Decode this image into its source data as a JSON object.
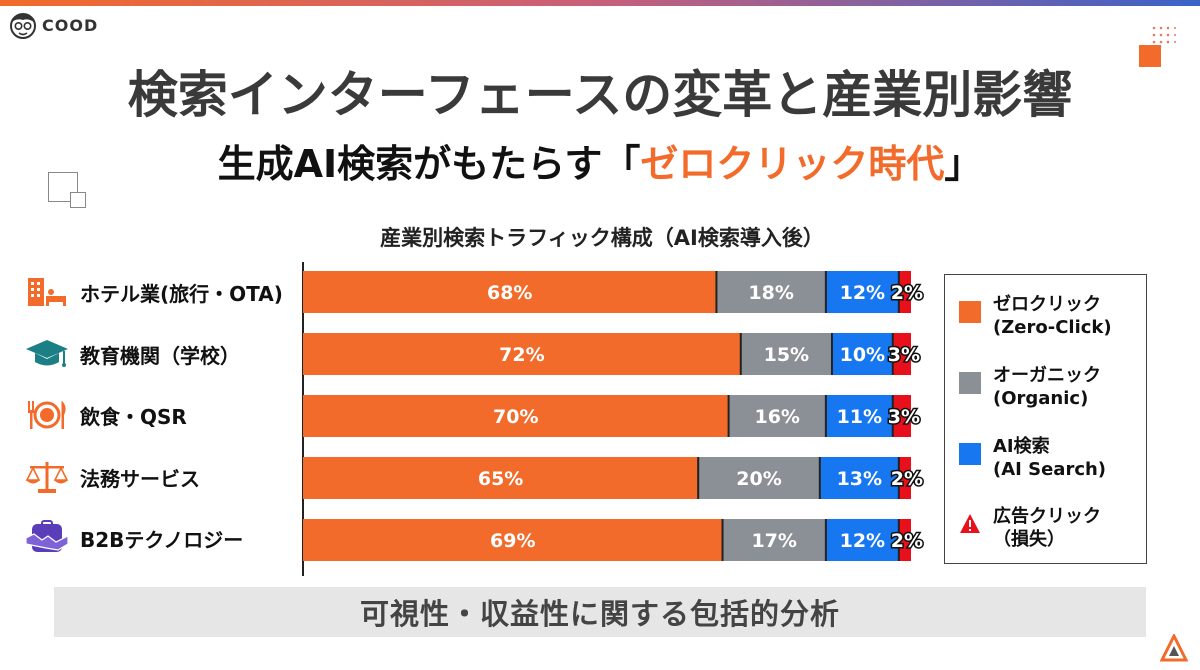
{
  "brand": {
    "logo_text": "COOD"
  },
  "header": {
    "title": "検索インターフェースの変革と産業別影響",
    "subtitle_prefix": "生成AI検索がもたらす「",
    "subtitle_highlight": "ゼロクリック時代",
    "subtitle_suffix": "」"
  },
  "colors": {
    "accent": "#f26b2a",
    "zero_click": "#f26b2a",
    "organic": "#8b8f96",
    "ai_search": "#1677f0",
    "ad_click": "#e8101a"
  },
  "icons": [
    "hotel-icon",
    "graduation-cap-icon",
    "dining-icon",
    "scales-icon",
    "handshake-icon"
  ],
  "chart_data": {
    "type": "bar",
    "orientation": "horizontal",
    "stacked": true,
    "title": "産業別検索トラフィック構成（AI検索導入後）",
    "categories": [
      "ホテル業(旅行・OTA)",
      "教育機関（学校）",
      "飲食・QSR",
      "法務サービス",
      "B2Bテクノロジー"
    ],
    "series": [
      {
        "name": "ゼロクリック\n(Zero-Click)",
        "color": "#f26b2a",
        "values": [
          68,
          72,
          70,
          65,
          69
        ]
      },
      {
        "name": "オーガニック\n(Organic)",
        "color": "#8b8f96",
        "values": [
          18,
          15,
          16,
          20,
          17
        ]
      },
      {
        "name": "AI検索\n(AI Search)",
        "color": "#1677f0",
        "values": [
          12,
          10,
          11,
          13,
          12
        ]
      },
      {
        "name": "広告クリック\n（損失）",
        "color": "#e8101a",
        "values": [
          2,
          3,
          3,
          2,
          2
        ]
      }
    ],
    "value_suffix": "%",
    "xlim": [
      0,
      100
    ],
    "legend_position": "right"
  },
  "footer": {
    "text": "可視性・収益性に関する包括的分析"
  }
}
